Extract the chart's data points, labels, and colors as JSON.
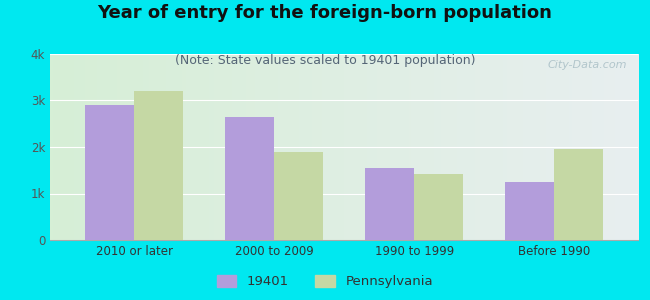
{
  "title": "Year of entry for the foreign-born population",
  "subtitle": "(Note: State values scaled to 19401 population)",
  "categories": [
    "2010 or later",
    "2000 to 2009",
    "1990 to 1999",
    "Before 1990"
  ],
  "series_19401": [
    2900,
    2650,
    1550,
    1250
  ],
  "series_pa": [
    3200,
    1900,
    1430,
    1950
  ],
  "color_19401": "#b39ddb",
  "color_pa": "#c5d8a4",
  "legend_labels": [
    "19401",
    "Pennsylvania"
  ],
  "ylim": [
    0,
    4000
  ],
  "yticks": [
    0,
    1000,
    2000,
    3000,
    4000
  ],
  "ytick_labels": [
    "0",
    "1k",
    "2k",
    "3k",
    "4k"
  ],
  "background_outer": "#00e8f0",
  "background_inner_left": "#d6efd6",
  "background_inner_right": "#e8eef0",
  "bar_width": 0.35,
  "title_fontsize": 13,
  "subtitle_fontsize": 9,
  "watermark": "City-Data.com"
}
